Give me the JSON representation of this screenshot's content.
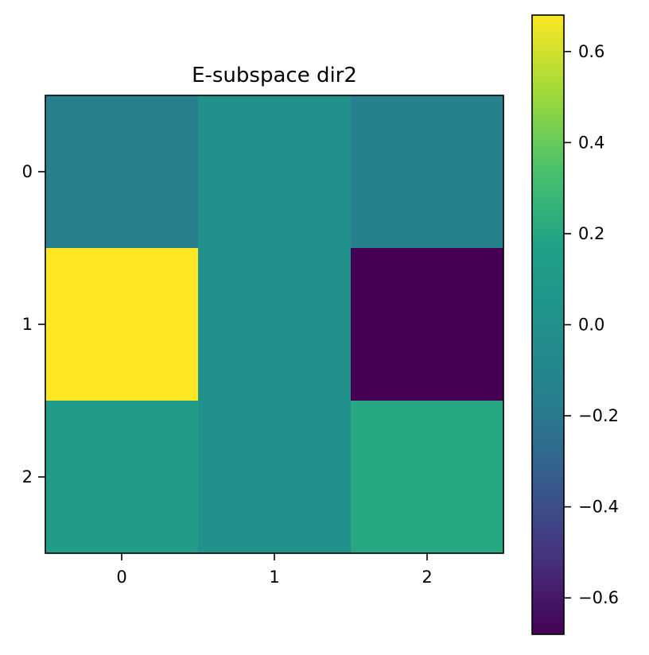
{
  "chart_data": {
    "type": "heatmap",
    "title": "E-subspace dir2",
    "xlabel": "",
    "ylabel": "",
    "x_tick_labels": [
      "0",
      "1",
      "2"
    ],
    "y_tick_labels": [
      "0",
      "1",
      "2"
    ],
    "values": [
      [
        -0.17,
        0.0,
        -0.16
      ],
      [
        0.68,
        0.0,
        -0.68
      ],
      [
        0.12,
        0.0,
        0.2
      ]
    ],
    "colormap": "viridis",
    "vmin": -0.68,
    "vmax": 0.68,
    "colorbar": {
      "ticks": [
        0.6,
        0.4,
        0.2,
        0.0,
        -0.2,
        -0.4,
        -0.6
      ],
      "tick_labels": [
        "0.6",
        "0.4",
        "0.2",
        "0.0",
        "−0.2",
        "−0.4",
        "−0.6"
      ]
    },
    "grid": false,
    "legend": "none"
  }
}
